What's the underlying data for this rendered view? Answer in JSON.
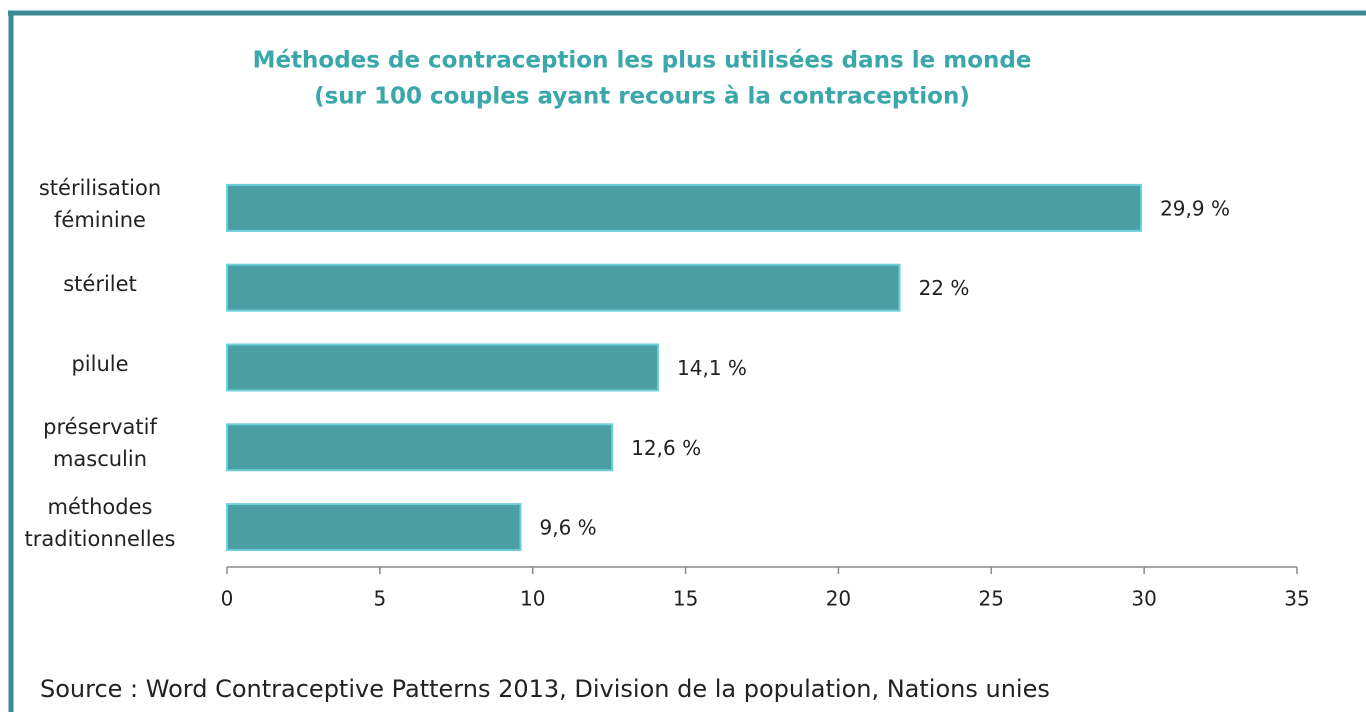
{
  "chart_data": {
    "type": "bar",
    "orientation": "horizontal",
    "title": "Méthodes de contraception les plus utilisées dans le monde",
    "subtitle": "(sur 100 couples ayant recours à la contraception)",
    "categories": [
      "stérilisation\nféminine",
      "stérilet",
      "pilule",
      "préservatif\nmasculin",
      "méthodes\ntraditionnelles"
    ],
    "values": [
      29.9,
      22,
      14.1,
      12.6,
      9.6
    ],
    "value_labels": [
      "29,9 %",
      "22 %",
      "14,1 %",
      "12,6 %",
      "9,6 %"
    ],
    "color": "#4a9ea4",
    "xlim": [
      0,
      35
    ],
    "xticks": [
      0,
      5,
      10,
      15,
      20,
      25,
      30,
      35
    ],
    "source": "Source : Word Contraceptive Patterns 2013, Division de la population, Nations unies"
  }
}
